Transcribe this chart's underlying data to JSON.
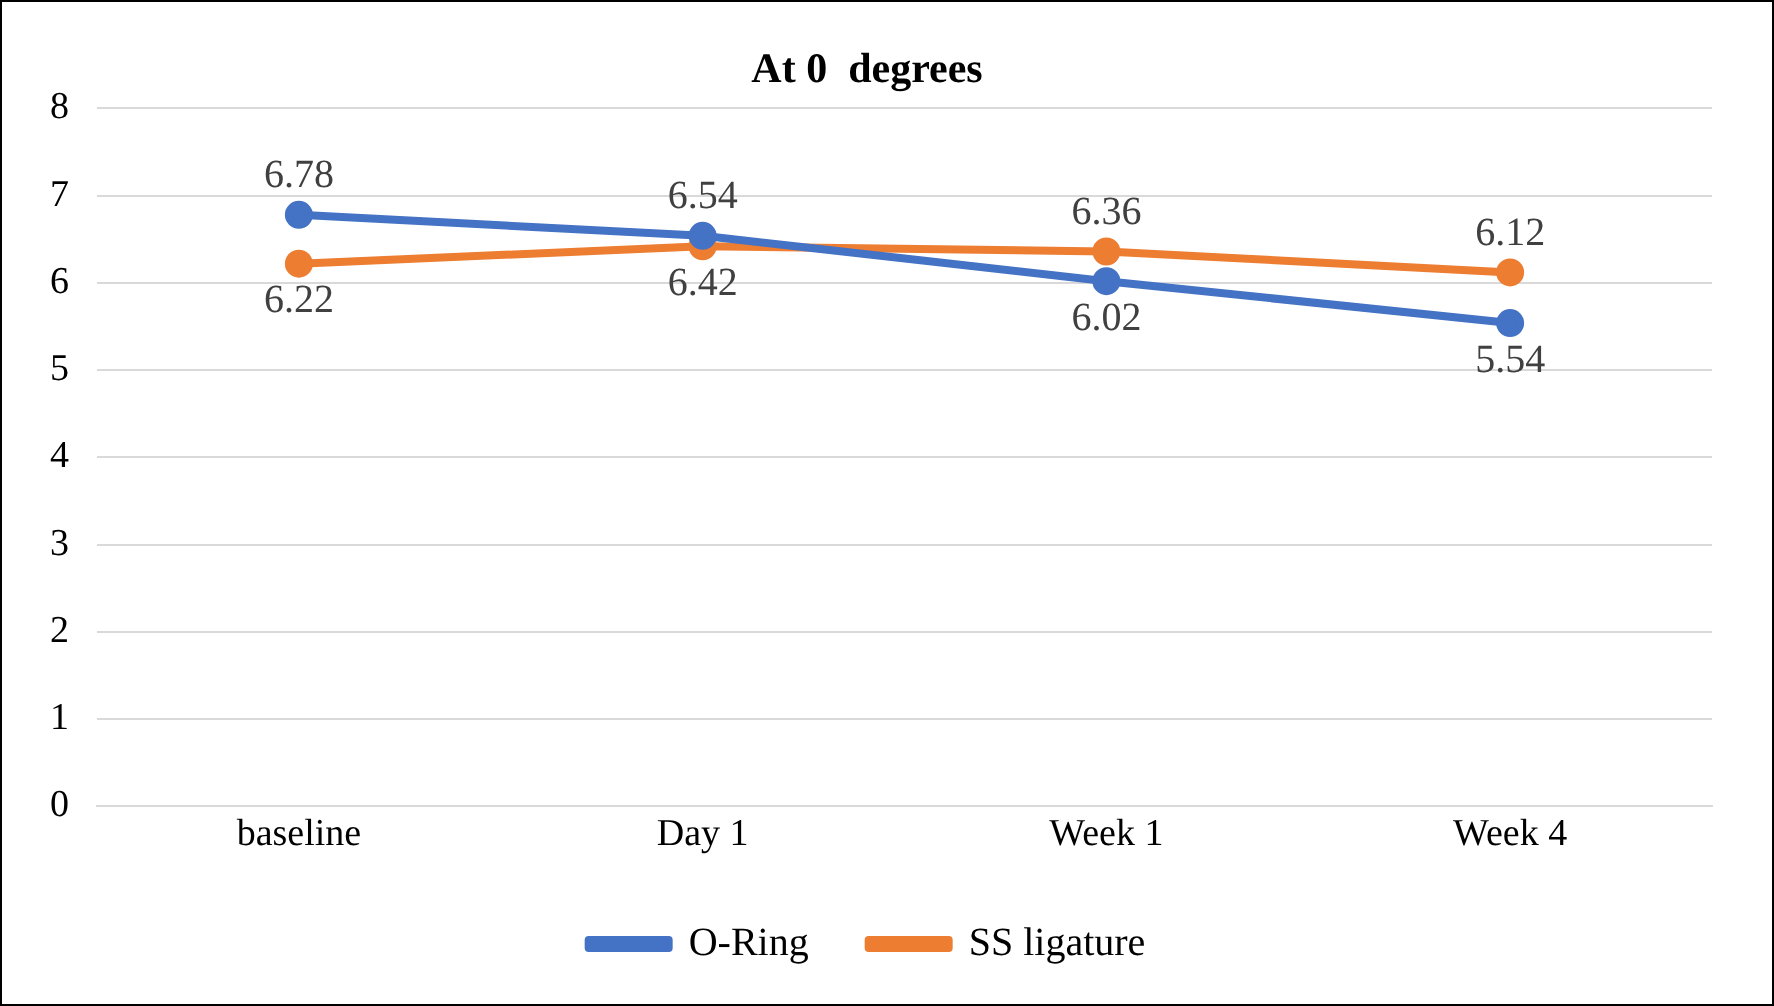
{
  "chart_data": {
    "type": "line",
    "title": "At 0  degrees",
    "categories": [
      "baseline",
      "Day 1",
      "Week 1",
      "Week 4"
    ],
    "series": [
      {
        "name": "O-Ring",
        "color": "#4472c4",
        "values": [
          6.78,
          6.54,
          6.02,
          5.54
        ]
      },
      {
        "name": "SS ligature",
        "color": "#ed7d31",
        "values": [
          6.22,
          6.42,
          6.36,
          6.12
        ]
      }
    ],
    "ylim": [
      0,
      8
    ],
    "yticks": [
      0,
      1,
      2,
      3,
      4,
      5,
      6,
      7,
      8
    ],
    "grid": "y",
    "legend": "bottom",
    "marker": "circle",
    "line_style": "solid",
    "data_labels": true
  }
}
